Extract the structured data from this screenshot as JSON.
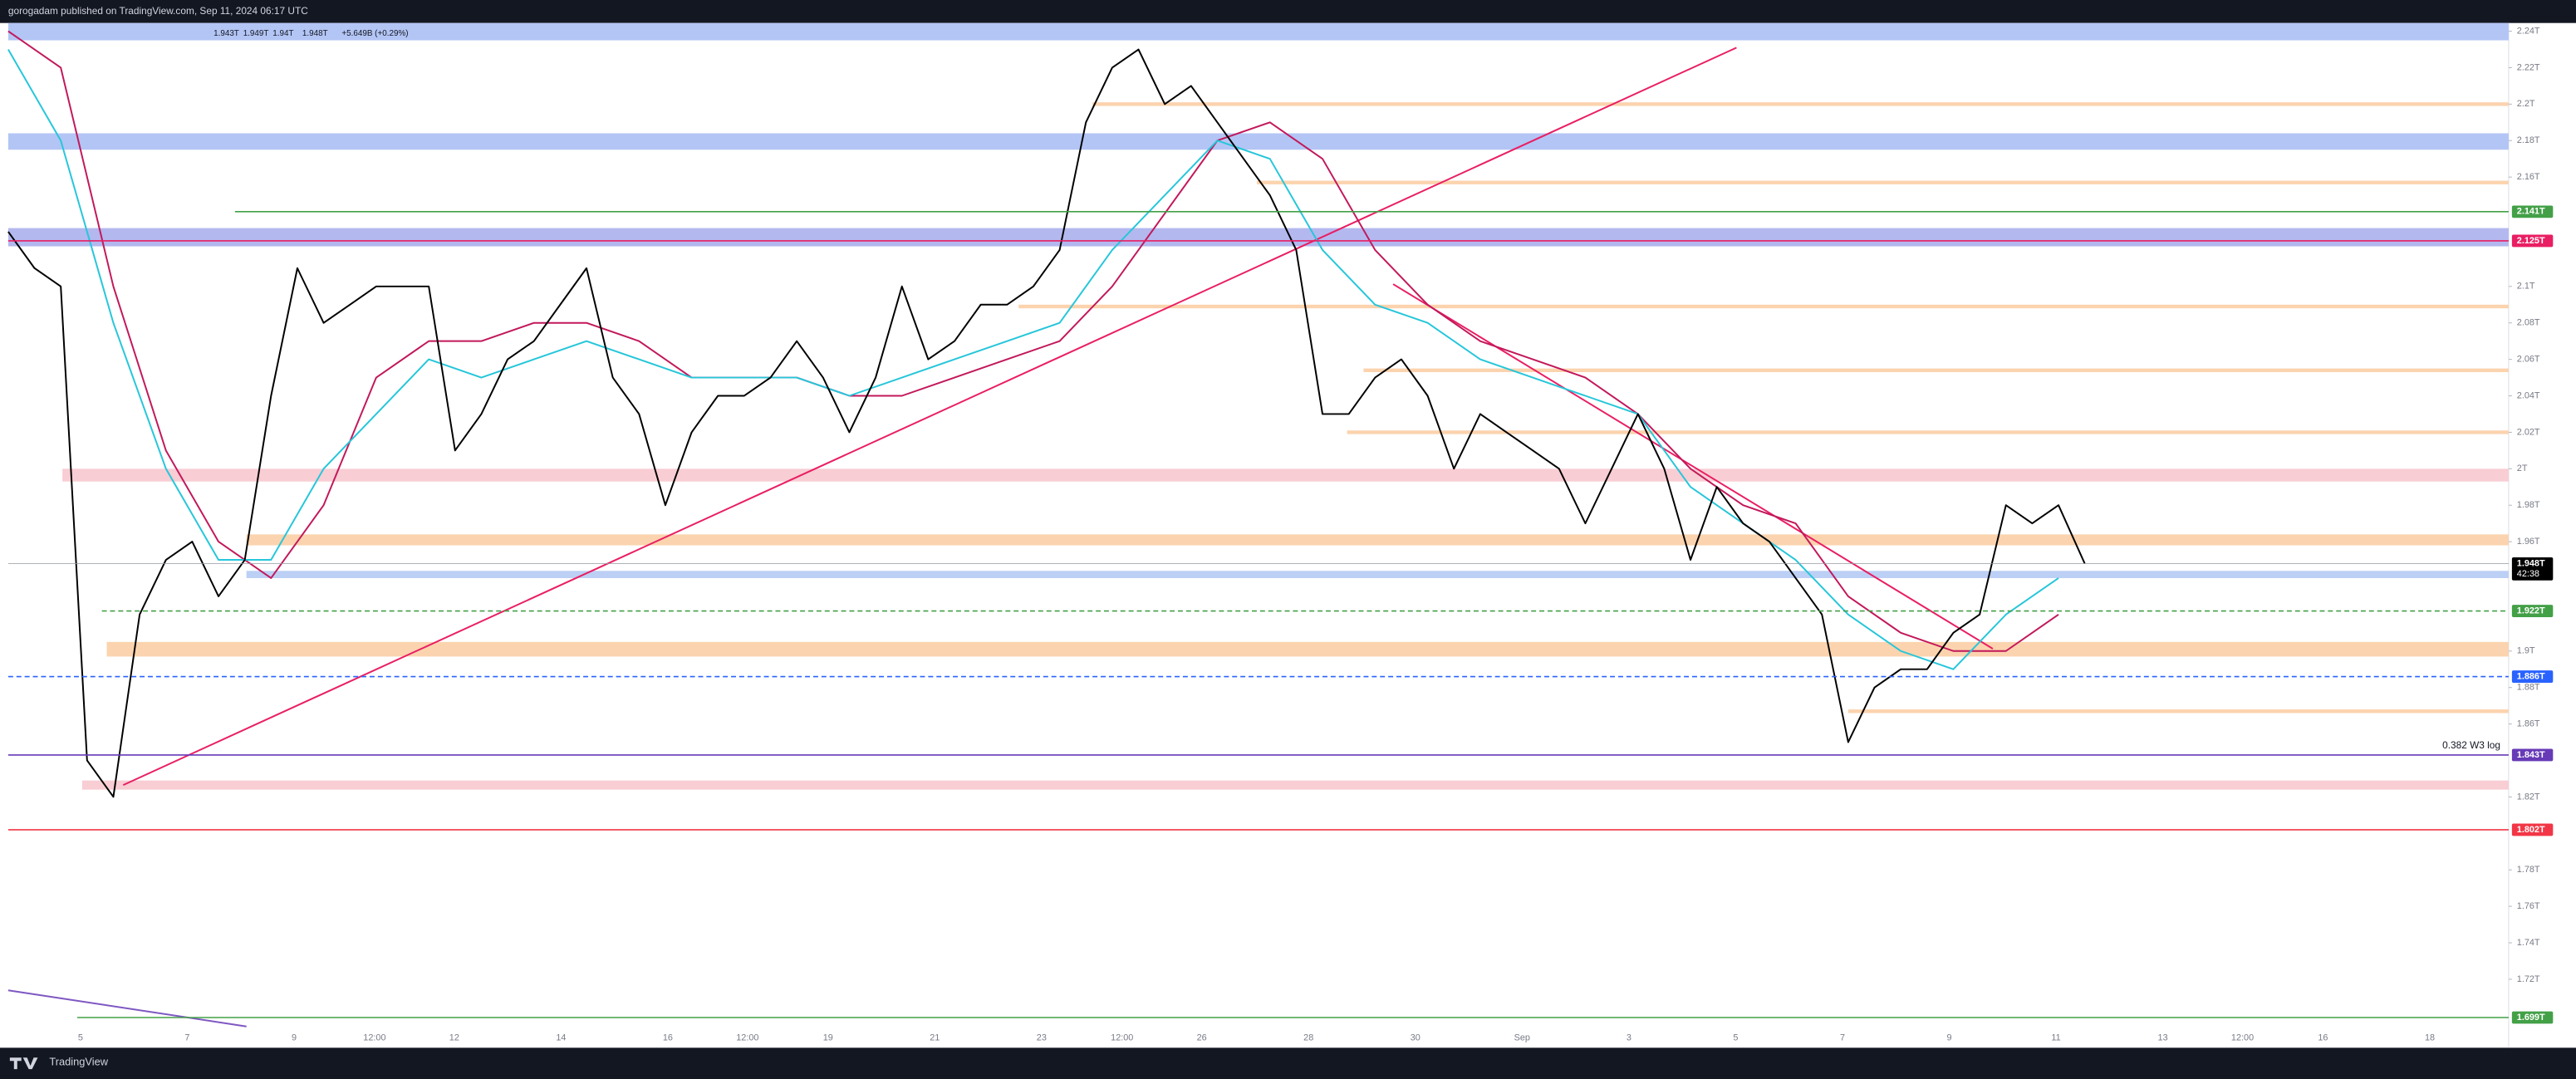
{
  "chart_data": {
    "type": "line",
    "header": "gorogadam published on TradingView.com, Sep 11, 2024 06:17 UTC",
    "ohlc": [
      "1.943T",
      "1.949T",
      "1.94T",
      "1.948T",
      "+5.649B (+0.29%)"
    ],
    "footer": "TradingView",
    "annotation": "0.382 W3 log",
    "ylim": [
      1.6824,
      2.2445
    ],
    "yticks": [
      {
        "value": 2.24,
        "label": "2.24T"
      },
      {
        "value": 2.22,
        "label": "2.22T"
      },
      {
        "value": 2.2,
        "label": "2.2T"
      },
      {
        "value": 2.18,
        "label": "2.18T"
      },
      {
        "value": 2.16,
        "label": "2.16T"
      },
      {
        "value": 2.1,
        "label": "2.1T"
      },
      {
        "value": 2.08,
        "label": "2.08T"
      },
      {
        "value": 2.06,
        "label": "2.06T"
      },
      {
        "value": 2.04,
        "label": "2.04T"
      },
      {
        "value": 2.02,
        "label": "2.02T"
      },
      {
        "value": 2,
        "label": "2T"
      },
      {
        "value": 1.98,
        "label": "1.98T"
      },
      {
        "value": 1.96,
        "label": "1.96T"
      },
      {
        "value": 1.9,
        "label": "1.9T"
      },
      {
        "value": 1.88,
        "label": "1.88T"
      },
      {
        "value": 1.86,
        "label": "1.86T"
      },
      {
        "value": 1.82,
        "label": "1.82T"
      },
      {
        "value": 1.78,
        "label": "1.78T"
      },
      {
        "value": 1.76,
        "label": "1.76T"
      },
      {
        "value": 1.74,
        "label": "1.74T"
      },
      {
        "value": 1.72,
        "label": "1.72T"
      }
    ],
    "x_labels": [
      "5",
      "7",
      "9",
      "12:00",
      "12",
      "14",
      "16",
      "12:00",
      "19",
      "21",
      "23",
      "12:00",
      "26",
      "28",
      "30",
      "Sep",
      "3",
      "5",
      "7",
      "9",
      "11",
      "13",
      "12:00",
      "16",
      "18"
    ],
    "series": [
      {
        "color": "#000000",
        "values": [
          2.13,
          2.11,
          2.1,
          1.84,
          1.82,
          1.92,
          1.95,
          1.96,
          1.93,
          1.95,
          2.04,
          2.11,
          2.08,
          2.09,
          2.1,
          2.1,
          2.1,
          2.01,
          2.03,
          2.06,
          2.07,
          2.09,
          2.11,
          2.05,
          2.03,
          1.98,
          2.02,
          2.04,
          2.04,
          2.05,
          2.07,
          2.05,
          2.02,
          2.05,
          2.1,
          2.06,
          2.07,
          2.09,
          2.09,
          2.1,
          2.12,
          2.19,
          2.22,
          2.23,
          2.2,
          2.21,
          2.19,
          2.17,
          2.15,
          2.12,
          2.03,
          2.03,
          2.05,
          2.06,
          2.04,
          2.0,
          2.03,
          2.02,
          2.01,
          2.0,
          1.97,
          2.0,
          2.03,
          2.0,
          1.95,
          1.99,
          1.97,
          1.96,
          1.94,
          1.92,
          1.85,
          1.88,
          1.89,
          1.89,
          1.91,
          1.92,
          1.98,
          1.97,
          1.98,
          1.948
        ]
      },
      {
        "color": "#26c6da",
        "values": [
          2.23,
          2.18,
          2.08,
          2.0,
          1.95,
          1.95,
          2.0,
          2.03,
          2.06,
          2.05,
          2.06,
          2.07,
          2.06,
          2.05,
          2.05,
          2.05,
          2.04,
          2.05,
          2.06,
          2.07,
          2.08,
          2.12,
          2.15,
          2.18,
          2.17,
          2.12,
          2.09,
          2.08,
          2.06,
          2.05,
          2.04,
          2.03,
          1.99,
          1.97,
          1.95,
          1.92,
          1.9,
          1.89,
          1.92,
          1.94
        ]
      },
      {
        "color": "#c2185b",
        "values": [
          2.24,
          2.22,
          2.1,
          2.01,
          1.96,
          1.94,
          1.98,
          2.05,
          2.07,
          2.07,
          2.08,
          2.08,
          2.07,
          2.05,
          2.05,
          2.05,
          2.04,
          2.04,
          2.05,
          2.06,
          2.07,
          2.1,
          2.14,
          2.18,
          2.19,
          2.17,
          2.12,
          2.09,
          2.07,
          2.06,
          2.05,
          2.03,
          2.0,
          1.98,
          1.97,
          1.93,
          1.91,
          1.9,
          1.9,
          1.92
        ]
      }
    ],
    "zones": [
      {
        "from": 2.235,
        "to": 2.2445,
        "color": "#b3c5f5"
      },
      {
        "from": 2.175,
        "to": 2.184,
        "color": "#b3c5f5"
      },
      {
        "from": 2.122,
        "to": 2.132,
        "color": "#b3b8ef"
      },
      {
        "from": 2.0,
        "to": 1.993,
        "color": "#f8cdd3"
      },
      {
        "from": 1.958,
        "to": 1.964,
        "color": "#fbd3ae"
      },
      {
        "from": 1.94,
        "to": 1.944,
        "color": "#bcd0f5"
      },
      {
        "from": 1.897,
        "to": 1.905,
        "color": "#fbd3ae"
      },
      {
        "from": 1.824,
        "to": 1.829,
        "color": "#f8cdd3"
      },
      {
        "from": 2.199,
        "to": 2.201,
        "color": "#fbd3ae"
      },
      {
        "from": 2.156,
        "to": 2.158,
        "color": "#fbd3ae"
      },
      {
        "from": 2.088,
        "to": 2.09,
        "color": "#fbd3ae"
      },
      {
        "from": 2.053,
        "to": 2.055,
        "color": "#fbd3ae"
      },
      {
        "from": 2.019,
        "to": 2.021,
        "color": "#fbd3ae"
      },
      {
        "from": 1.866,
        "to": 1.868,
        "color": "#fbd3ae"
      }
    ],
    "levels": [
      {
        "value": 2.141,
        "label": "2.141T",
        "color": "#43a047",
        "dash": false
      },
      {
        "value": 2.125,
        "label": "2.125T",
        "color": "#e91e63",
        "dash": false
      },
      {
        "value": 1.948,
        "label": "1.948T",
        "color": "#000000",
        "dash": false,
        "countdown": "42:38"
      },
      {
        "value": 1.922,
        "label": "1.922T",
        "color": "#43a047",
        "dash": true
      },
      {
        "value": 1.886,
        "label": "1.886T",
        "color": "#2962ff",
        "dash": true
      },
      {
        "value": 1.843,
        "label": "1.843T",
        "color": "#673ab7",
        "dash": false
      },
      {
        "value": 1.802,
        "label": "1.802T",
        "color": "#f23645",
        "dash": false
      },
      {
        "value": 1.699,
        "label": "1.699T",
        "color": "#43a047",
        "dash": false
      }
    ]
  }
}
